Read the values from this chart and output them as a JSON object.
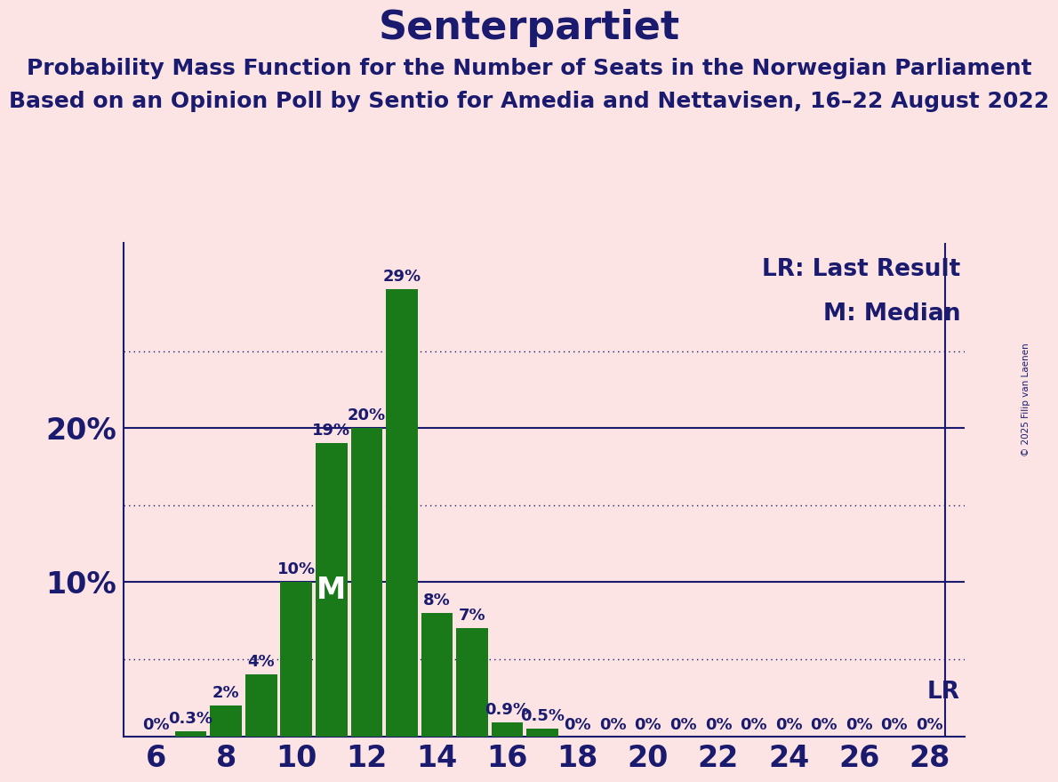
{
  "title": "Senterpartiet",
  "subtitle1": "Probability Mass Function for the Number of Seats in the Norwegian Parliament",
  "subtitle2": "Based on an Opinion Poll by Sentio for Amedia and Nettavisen, 16–22 August 2022",
  "copyright": "© 2025 Filip van Laenen",
  "legend_lr": "LR: Last Result",
  "legend_m": "M: Median",
  "seats": [
    6,
    7,
    8,
    9,
    10,
    11,
    12,
    13,
    14,
    15,
    16,
    17,
    18,
    19,
    20,
    21,
    22,
    23,
    24,
    25,
    26,
    27,
    28
  ],
  "probabilities": [
    0.0,
    0.003,
    0.02,
    0.04,
    0.1,
    0.19,
    0.2,
    0.29,
    0.08,
    0.07,
    0.009,
    0.005,
    0.0,
    0.0,
    0.0,
    0.0,
    0.0,
    0.0,
    0.0,
    0.0,
    0.0,
    0.0,
    0.0
  ],
  "bar_labels": [
    "0%",
    "0.3%",
    "2%",
    "4%",
    "10%",
    "19%",
    "20%",
    "29%",
    "8%",
    "7%",
    "0.9%",
    "0.5%",
    "0%",
    "0%",
    "0%",
    "0%",
    "0%",
    "0%",
    "0%",
    "0%",
    "0%",
    "0%",
    "0%"
  ],
  "bar_color": "#1a7a1a",
  "median_seat": 12,
  "median_label_seat": 11,
  "lr_seat": 28,
  "xtick_seats": [
    6,
    8,
    10,
    12,
    14,
    16,
    18,
    20,
    22,
    24,
    26,
    28
  ],
  "yticks": [
    0.0,
    0.05,
    0.1,
    0.15,
    0.2,
    0.25,
    0.3
  ],
  "ytick_labels_shown": [
    "",
    "",
    "10%",
    "",
    "20%",
    "",
    ""
  ],
  "solid_ylines": [
    0.1,
    0.2
  ],
  "dotted_ylines": [
    0.05,
    0.15,
    0.25
  ],
  "ylim": [
    0,
    0.32
  ],
  "xlim_left": 5.1,
  "xlim_right": 29.0,
  "background_color": "#fce4e4",
  "title_color": "#1a1a6e",
  "text_color": "#1a1a6e",
  "bar_label_color": "#1a1a6e",
  "median_label_color": "#ffffff",
  "title_fontsize": 32,
  "subtitle_fontsize": 18,
  "ytick_fontsize": 24,
  "xtick_fontsize": 24,
  "bar_label_fontsize": 13,
  "legend_fontsize": 19,
  "median_fontsize": 24,
  "copyright_fontsize": 7.5
}
